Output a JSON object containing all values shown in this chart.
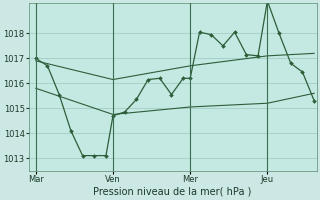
{
  "xlabel": "Pression niveau de la mer( hPa )",
  "background_color": "#cce8e4",
  "plot_bg_color": "#c4e8e2",
  "grid_color": "#9ec8c0",
  "line_color": "#2d5e3a",
  "vline_color": "#3a6e50",
  "ylim": [
    1012.5,
    1019.2
  ],
  "yticks": [
    1013,
    1014,
    1015,
    1016,
    1017,
    1018
  ],
  "xtick_labels": [
    "Mar",
    "Ven",
    "Mer",
    "Jeu"
  ],
  "xtick_positions": [
    0,
    33,
    66,
    99
  ],
  "vline_positions": [
    0,
    33,
    66,
    99
  ],
  "xlim": [
    -3,
    120
  ],
  "series1_x": [
    0,
    5,
    10,
    15,
    20,
    25,
    30,
    33,
    38,
    43,
    48,
    53,
    58,
    63,
    66,
    70,
    75,
    80,
    85,
    90,
    95,
    99,
    104,
    109,
    114,
    119
  ],
  "series1_y": [
    1017.0,
    1016.7,
    1015.55,
    1014.1,
    1013.1,
    1013.1,
    1013.1,
    1014.7,
    1014.85,
    1015.35,
    1016.15,
    1016.2,
    1015.55,
    1016.2,
    1016.2,
    1018.05,
    1017.95,
    1017.5,
    1018.05,
    1017.15,
    1017.1,
    1019.3,
    1018.0,
    1016.8,
    1016.45,
    1015.3
  ],
  "series2_x": [
    0,
    33,
    66,
    99,
    119
  ],
  "series2_y": [
    1016.9,
    1016.15,
    1016.7,
    1017.1,
    1017.2
  ],
  "series3_x": [
    0,
    33,
    66,
    99,
    119
  ],
  "series3_y": [
    1015.8,
    1014.75,
    1015.05,
    1015.2,
    1015.6
  ],
  "marker": "D",
  "markersize": 2.0,
  "linewidth1": 0.9,
  "linewidth2": 0.8,
  "xlabel_fontsize": 7,
  "tick_fontsize": 6
}
